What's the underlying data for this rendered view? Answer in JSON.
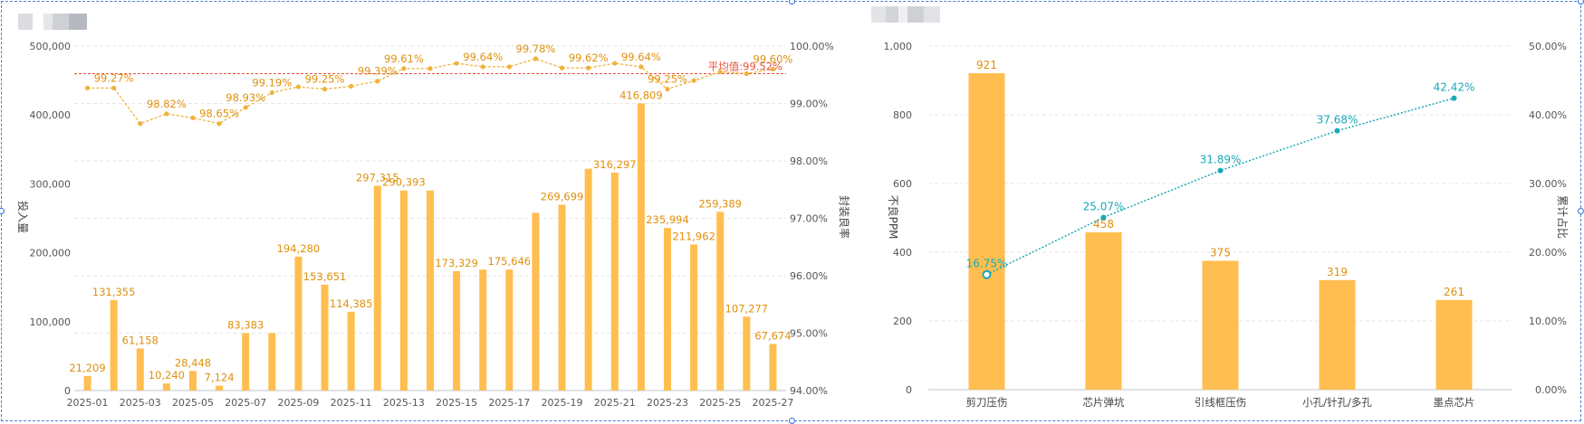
{
  "chart_data": [
    {
      "type": "bar",
      "categories": [
        "2025-01",
        "2025-02",
        "2025-03",
        "2025-04",
        "2025-05",
        "2025-06",
        "2025-07",
        "2025-08",
        "2025-09",
        "2025-10",
        "2025-11",
        "2025-12",
        "2025-13",
        "2025-14",
        "2025-15",
        "2025-16",
        "2025-17",
        "2025-18",
        "2025-19",
        "2025-20",
        "2025-21",
        "2025-22",
        "2025-23",
        "2025-24",
        "2025-25",
        "2025-26",
        "2025-27"
      ],
      "x_tick_labels": [
        "2025-01",
        "2025-03",
        "2025-05",
        "2025-07",
        "2025-09",
        "2025-11",
        "2025-13",
        "2025-15",
        "2025-17",
        "2025-19",
        "2025-21",
        "2025-23",
        "2025-25",
        "2025-27"
      ],
      "series": [
        {
          "name": "投入量",
          "type": "bar",
          "axis": "left",
          "color": "#FFBE4F",
          "values": [
            21209,
            131355,
            61158,
            10240,
            28448,
            7124,
            83383,
            83383,
            194280,
            153651,
            114385,
            297315,
            290393,
            290393,
            173329,
            175646,
            175646,
            258000,
            269699,
            322000,
            316297,
            416809,
            235994,
            211962,
            259389,
            107277,
            67674
          ],
          "labels": [
            "21,209",
            "131,355",
            "61,158",
            "10,240",
            "28,448",
            "7,124",
            "83,383",
            "",
            "194,280",
            "153,651",
            "114,385",
            "297,315",
            "290,393",
            "",
            "173,329",
            "",
            "175,646",
            "",
            "269,699",
            "",
            "316,297",
            "416,809",
            "235,994",
            "211,962",
            "259,389",
            "107,277",
            "67,674"
          ]
        },
        {
          "name": "封装良率",
          "type": "line",
          "axis": "right",
          "color": "#F0B23C",
          "values": [
            99.27,
            99.27,
            98.65,
            98.82,
            98.75,
            98.65,
            98.93,
            99.19,
            99.29,
            99.25,
            99.3,
            99.39,
            99.61,
            99.61,
            99.7,
            99.64,
            99.64,
            99.78,
            99.62,
            99.62,
            99.7,
            99.64,
            99.25,
            99.4,
            99.55,
            99.52,
            99.6
          ],
          "labels": [
            "",
            "99.27%",
            "",
            "98.82%",
            "",
            "98.65%",
            "98.93%",
            "99.19%",
            "",
            "99.25%",
            "",
            "99.39%",
            "99.61%",
            "",
            "",
            "99.64%",
            "",
            "99.78%",
            "",
            "99.62%",
            "",
            "99.64%",
            "99.25%",
            "",
            "",
            "",
            "99.60%"
          ]
        }
      ],
      "ylabel": "投入量",
      "y2label": "封装良率",
      "ylim": [
        0,
        500000
      ],
      "y_ticks": [
        "0",
        "100,000",
        "200,000",
        "300,000",
        "400,000",
        "500,000"
      ],
      "y2lim": [
        94.0,
        100.0
      ],
      "y2_ticks": [
        "94.00%",
        "95.00%",
        "96.00%",
        "97.00%",
        "98.00%",
        "99.00%",
        "100.00%"
      ],
      "reference_line": {
        "value": 99.52,
        "axis": "right",
        "color": "#E8503A",
        "label": "平均值:99.52%"
      },
      "grid": true
    },
    {
      "type": "bar",
      "categories": [
        "剪刀压伤",
        "芯片弹坑",
        "引线框压伤",
        "小孔/针孔/多孔",
        "墨点芯片"
      ],
      "series": [
        {
          "name": "不良PPM",
          "type": "bar",
          "axis": "left",
          "color": "#FFBE4F",
          "values": [
            921,
            458,
            375,
            319,
            261
          ]
        },
        {
          "name": "累计占比",
          "type": "line",
          "axis": "right",
          "color": "#1AA8B8",
          "values": [
            16.75,
            25.07,
            31.89,
            37.68,
            42.42
          ],
          "labels": [
            "16.75%",
            "25.07%",
            "31.89%",
            "37.68%",
            "42.42%"
          ]
        }
      ],
      "ylabel": "不良PPM",
      "y2label": "累计占比",
      "ylim": [
        0,
        1000
      ],
      "y_ticks": [
        "0",
        "200",
        "400",
        "600",
        "800",
        "1,000"
      ],
      "y2lim": [
        0,
        50
      ],
      "y2_ticks": [
        "0.00%",
        "10.00%",
        "20.00%",
        "30.00%",
        "40.00%",
        "50.00%"
      ],
      "grid": true
    }
  ]
}
